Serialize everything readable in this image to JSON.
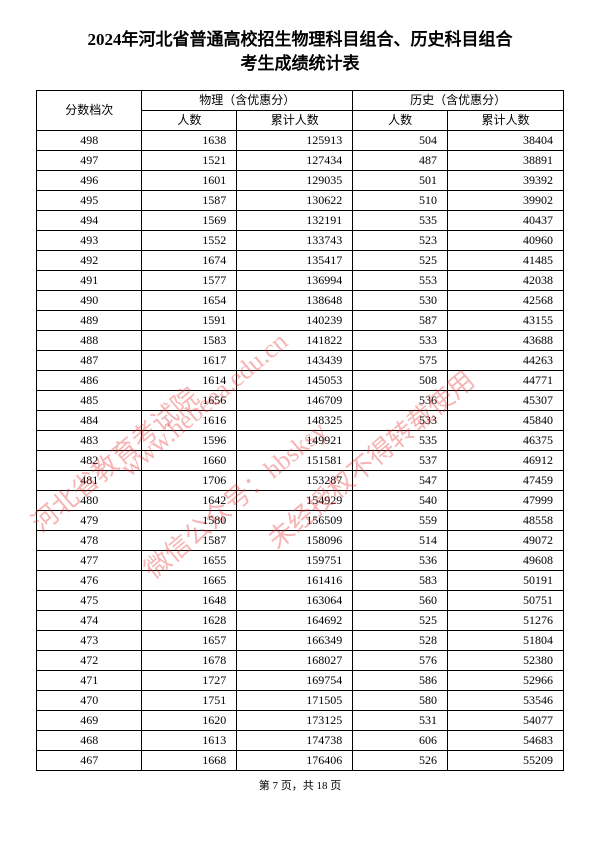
{
  "title_line1": "2024年河北省普通高校招生物理科目组合、历史科目组合",
  "title_line2": "考生成绩统计表",
  "header": {
    "score_col": "分数档次",
    "physics": "物理（含优惠分）",
    "history": "历史（含优惠分）",
    "count": "人数",
    "cum": "累计人数"
  },
  "footer": "第 7 页，共 18 页",
  "watermark": {
    "line1": "河北省教育考试院",
    "line2": "www.hebeea.edu.cn",
    "line3": "微信公众号：hbsksy",
    "line4": "未经授权不得转载使用"
  },
  "rows": [
    {
      "s": 498,
      "pc": 1638,
      "pk": 125913,
      "hc": 504,
      "hk": 38404
    },
    {
      "s": 497,
      "pc": 1521,
      "pk": 127434,
      "hc": 487,
      "hk": 38891
    },
    {
      "s": 496,
      "pc": 1601,
      "pk": 129035,
      "hc": 501,
      "hk": 39392
    },
    {
      "s": 495,
      "pc": 1587,
      "pk": 130622,
      "hc": 510,
      "hk": 39902
    },
    {
      "s": 494,
      "pc": 1569,
      "pk": 132191,
      "hc": 535,
      "hk": 40437
    },
    {
      "s": 493,
      "pc": 1552,
      "pk": 133743,
      "hc": 523,
      "hk": 40960
    },
    {
      "s": 492,
      "pc": 1674,
      "pk": 135417,
      "hc": 525,
      "hk": 41485
    },
    {
      "s": 491,
      "pc": 1577,
      "pk": 136994,
      "hc": 553,
      "hk": 42038
    },
    {
      "s": 490,
      "pc": 1654,
      "pk": 138648,
      "hc": 530,
      "hk": 42568
    },
    {
      "s": 489,
      "pc": 1591,
      "pk": 140239,
      "hc": 587,
      "hk": 43155
    },
    {
      "s": 488,
      "pc": 1583,
      "pk": 141822,
      "hc": 533,
      "hk": 43688
    },
    {
      "s": 487,
      "pc": 1617,
      "pk": 143439,
      "hc": 575,
      "hk": 44263
    },
    {
      "s": 486,
      "pc": 1614,
      "pk": 145053,
      "hc": 508,
      "hk": 44771
    },
    {
      "s": 485,
      "pc": 1656,
      "pk": 146709,
      "hc": 536,
      "hk": 45307
    },
    {
      "s": 484,
      "pc": 1616,
      "pk": 148325,
      "hc": 533,
      "hk": 45840
    },
    {
      "s": 483,
      "pc": 1596,
      "pk": 149921,
      "hc": 535,
      "hk": 46375
    },
    {
      "s": 482,
      "pc": 1660,
      "pk": 151581,
      "hc": 537,
      "hk": 46912
    },
    {
      "s": 481,
      "pc": 1706,
      "pk": 153287,
      "hc": 547,
      "hk": 47459
    },
    {
      "s": 480,
      "pc": 1642,
      "pk": 154929,
      "hc": 540,
      "hk": 47999
    },
    {
      "s": 479,
      "pc": 1580,
      "pk": 156509,
      "hc": 559,
      "hk": 48558
    },
    {
      "s": 478,
      "pc": 1587,
      "pk": 158096,
      "hc": 514,
      "hk": 49072
    },
    {
      "s": 477,
      "pc": 1655,
      "pk": 159751,
      "hc": 536,
      "hk": 49608
    },
    {
      "s": 476,
      "pc": 1665,
      "pk": 161416,
      "hc": 583,
      "hk": 50191
    },
    {
      "s": 475,
      "pc": 1648,
      "pk": 163064,
      "hc": 560,
      "hk": 50751
    },
    {
      "s": 474,
      "pc": 1628,
      "pk": 164692,
      "hc": 525,
      "hk": 51276
    },
    {
      "s": 473,
      "pc": 1657,
      "pk": 166349,
      "hc": 528,
      "hk": 51804
    },
    {
      "s": 472,
      "pc": 1678,
      "pk": 168027,
      "hc": 576,
      "hk": 52380
    },
    {
      "s": 471,
      "pc": 1727,
      "pk": 169754,
      "hc": 586,
      "hk": 52966
    },
    {
      "s": 470,
      "pc": 1751,
      "pk": 171505,
      "hc": 580,
      "hk": 53546
    },
    {
      "s": 469,
      "pc": 1620,
      "pk": 173125,
      "hc": 531,
      "hk": 54077
    },
    {
      "s": 468,
      "pc": 1613,
      "pk": 174738,
      "hc": 606,
      "hk": 54683
    },
    {
      "s": 467,
      "pc": 1668,
      "pk": 176406,
      "hc": 526,
      "hk": 55209
    }
  ],
  "col_widths": {
    "score": "20%",
    "pc": "18%",
    "pk": "22%",
    "hc": "18%",
    "hk": "22%"
  }
}
